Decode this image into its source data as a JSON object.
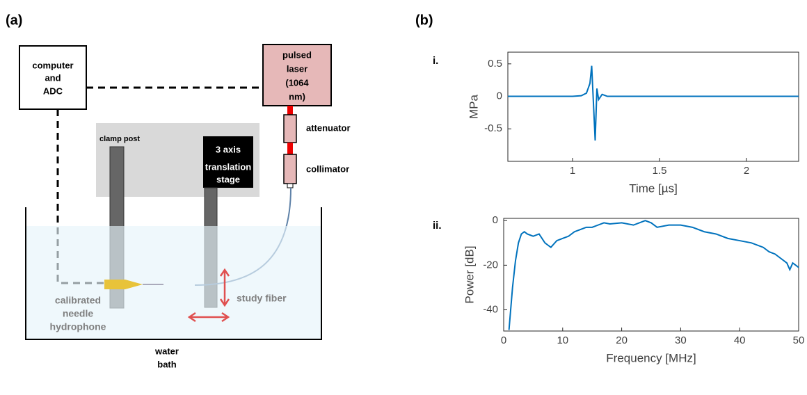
{
  "panel_a": {
    "label": "(a)",
    "computer": [
      "computer",
      "and",
      "ADC"
    ],
    "laser": [
      "pulsed",
      "laser",
      "(1064",
      "nm)"
    ],
    "attenuator": "attenuator",
    "collimator": "collimator",
    "clamp_post": "clamp post",
    "stage": [
      "3 axis",
      "translation",
      "stage"
    ],
    "hydrophone": [
      "calibrated",
      "needle",
      "hydrophone"
    ],
    "fiber": "study fiber",
    "bath": [
      "water",
      "bath"
    ]
  },
  "panel_b": {
    "label": "(b)"
  },
  "chart_data": [
    {
      "type": "line",
      "label": "i.",
      "xlabel": "Time [µs]",
      "ylabel": "MPa",
      "color": "#0072bd",
      "x": [
        0.628,
        1.0,
        1.05,
        1.08,
        1.1,
        1.11,
        1.12,
        1.13,
        1.14,
        1.15,
        1.17,
        1.2,
        1.3,
        1.5,
        2.0,
        2.3
      ],
      "values": [
        0,
        0,
        0.01,
        0.05,
        0.2,
        0.47,
        -0.1,
        -0.68,
        0.12,
        -0.05,
        0.03,
        0,
        0,
        0,
        0,
        0
      ],
      "xlim": [
        0.628,
        2.3
      ],
      "ylim": [
        -1.0,
        0.68
      ],
      "xticks": [
        1,
        1.5,
        2
      ],
      "yticks": [
        -0.5,
        0,
        0.5
      ]
    },
    {
      "type": "line",
      "label": "ii.",
      "xlabel": "Frequency [MHz]",
      "ylabel": "Power [dB]",
      "color": "#0072bd",
      "x": [
        0.9,
        1.5,
        2,
        2.5,
        3,
        3.5,
        4,
        5,
        6,
        7,
        7.5,
        8,
        9,
        10,
        11,
        12,
        13,
        14,
        15,
        16,
        17,
        18,
        20,
        22,
        24,
        25,
        26,
        28,
        30,
        32,
        34,
        36,
        38,
        40,
        42,
        44,
        45,
        46,
        47,
        48,
        48.5,
        49,
        50
      ],
      "values": [
        -49,
        -30,
        -18,
        -10,
        -6,
        -5,
        -6,
        -7,
        -6,
        -10,
        -11,
        -12,
        -9,
        -8,
        -7,
        -5,
        -4,
        -3,
        -3,
        -2,
        -1,
        -1.5,
        -1,
        -2,
        0,
        -1,
        -3,
        -2,
        -2,
        -3,
        -5,
        -6,
        -8,
        -9,
        -10,
        -12,
        -14,
        -15,
        -17,
        -19,
        -22,
        -19,
        -21
      ],
      "xlim": [
        0,
        50
      ],
      "ylim": [
        -49.5,
        1
      ],
      "xticks": [
        0,
        10,
        20,
        30,
        40,
        50
      ],
      "yticks": [
        -40,
        -20,
        0
      ]
    }
  ]
}
